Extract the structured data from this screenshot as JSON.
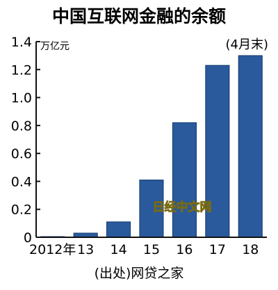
{
  "chart_data": {
    "type": "bar",
    "title": "中国互联网金融的余额",
    "unit_label": "万亿元",
    "period_note": "(4月末)",
    "categories": [
      "2012年",
      "13",
      "14",
      "15",
      "16",
      "17",
      "18"
    ],
    "values": [
      0.005,
      0.03,
      0.11,
      0.41,
      0.82,
      1.23,
      1.3
    ],
    "yticks": [
      "0",
      "0.2",
      "0.4",
      "0.6",
      "0.8",
      "1.0",
      "1.2",
      "1.4"
    ],
    "ylim": [
      0,
      1.4
    ],
    "source": "(出处)网贷之家",
    "watermark": "日经中文网",
    "bar_color": "#2a5a9c",
    "bar_border": "#123a6e",
    "grid": false,
    "legend": "none"
  }
}
